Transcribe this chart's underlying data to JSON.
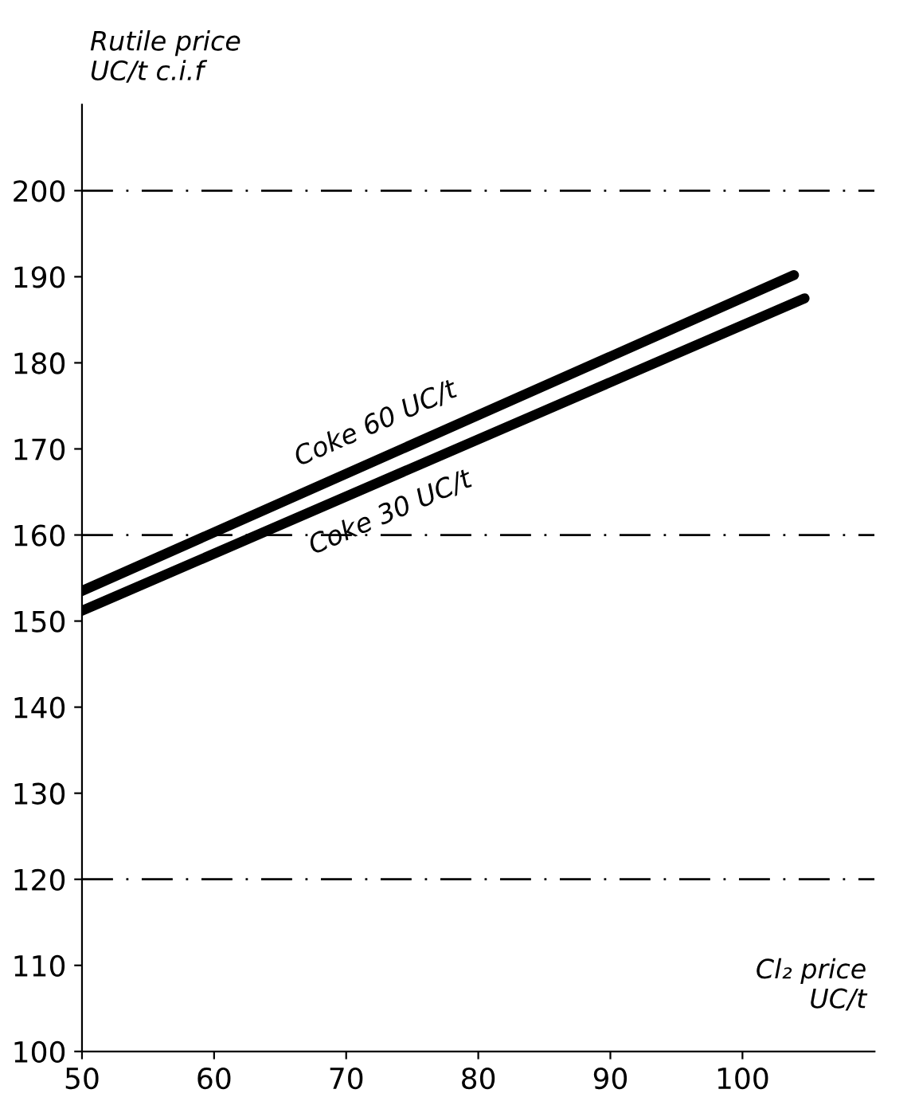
{
  "chart_data": {
    "type": "line",
    "ylabel": "Rutile price\nUC/t c.i.f",
    "xlabel": "Cl₂ price\nUC/t",
    "xlim": [
      50,
      110
    ],
    "ylim": [
      100,
      210
    ],
    "xticks": [
      50,
      60,
      70,
      80,
      90,
      100
    ],
    "yticks": [
      100,
      110,
      120,
      130,
      140,
      150,
      160,
      170,
      180,
      190,
      200
    ],
    "series": [
      {
        "name": "Coke 60 UC/t",
        "color": "#000000",
        "x": [
          50,
          103.9
        ],
        "values": [
          153.5,
          190.2
        ]
      },
      {
        "name": "Coke 30 UC/t",
        "color": "#000000",
        "x": [
          50,
          104.7
        ],
        "values": [
          151.2,
          187.5
        ]
      }
    ],
    "ref_lines": [
      {
        "axis": "y",
        "value": 120,
        "line_style": "dashdot"
      },
      {
        "axis": "y",
        "value": 160,
        "line_style": "dashdot"
      },
      {
        "axis": "y",
        "value": 200,
        "line_style": "dashdot"
      }
    ],
    "legend": false,
    "grid": false,
    "marker": "none",
    "line_style": "solid"
  }
}
